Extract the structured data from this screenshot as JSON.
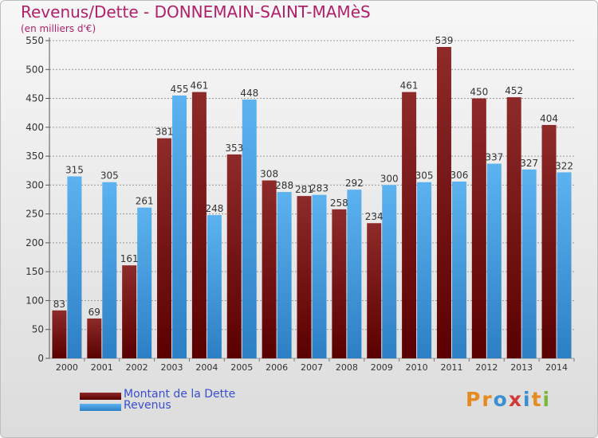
{
  "chart_data": {
    "type": "bar",
    "title": "Revenus/Dette - DONNEMAIN-SAINT-MAMèS",
    "subtitle": "(en milliers d'€)",
    "categories": [
      "2000",
      "2001",
      "2002",
      "2003",
      "2004",
      "2005",
      "2006",
      "2007",
      "2008",
      "2009",
      "2010",
      "2011",
      "2012",
      "2013",
      "2014"
    ],
    "series": [
      {
        "name": "Montant de la Dette",
        "color": "#7a1515",
        "values": [
          83,
          69,
          161,
          381,
          461,
          353,
          308,
          281,
          258,
          234,
          461,
          539,
          450,
          452,
          404
        ]
      },
      {
        "name": "Revenus",
        "color": "#4aa3e6",
        "values": [
          315,
          305,
          261,
          455,
          248,
          448,
          288,
          283,
          292,
          300,
          305,
          306,
          337,
          327,
          322
        ]
      }
    ],
    "ylim": [
      0,
      550
    ],
    "yticks": [
      0,
      50,
      100,
      150,
      200,
      250,
      300,
      350,
      400,
      450,
      500,
      550
    ],
    "grid": true,
    "legend": "bottom-left"
  },
  "logo": {
    "letters": [
      "P",
      "r",
      "o",
      "x",
      "i",
      "t",
      "i"
    ]
  }
}
